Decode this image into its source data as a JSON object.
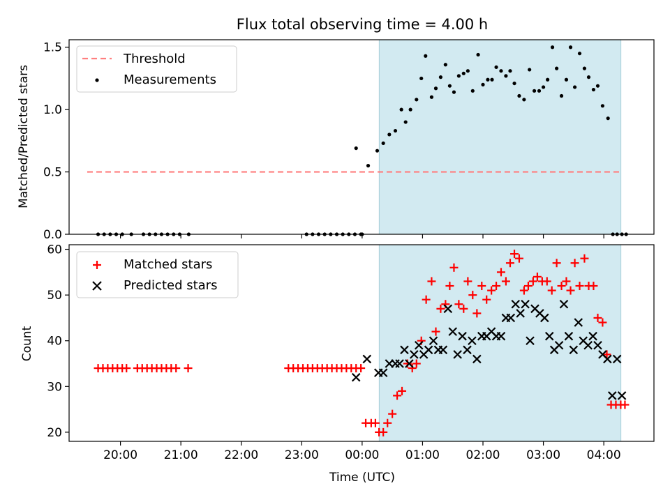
{
  "chart_data": [
    {
      "type": "scatter",
      "title": "Flux total observing time = 4.00 h",
      "xlabel": "",
      "ylabel": "Matched/Predicted stars",
      "ylim": [
        0,
        1.56
      ],
      "yticks": [
        "0.0",
        "0.5",
        "1.0",
        "1.5"
      ],
      "ytick_values": [
        0,
        0.5,
        1.0,
        1.5
      ],
      "shaded_region_hours": [
        0.283,
        4.283
      ],
      "threshold": {
        "name": "Threshold",
        "value": 0.5,
        "x_range": [
          -4.55,
          4.3
        ],
        "color": "#ff7f7f"
      },
      "legend": {
        "placement": "top-left",
        "entries": [
          "Threshold",
          "Measurements"
        ]
      },
      "series": [
        {
          "name": "Measurements",
          "color": "#000000",
          "marker": "dot",
          "x": [
            -4.37,
            -4.27,
            -4.17,
            -4.07,
            -3.97,
            -3.82,
            -3.62,
            -3.52,
            -3.42,
            -3.32,
            -3.22,
            -3.12,
            -3.02,
            -2.87,
            -0.92,
            -0.82,
            -0.72,
            -0.62,
            -0.52,
            -0.42,
            -0.32,
            -0.22,
            -0.12,
            -0.02,
            -0.1,
            0.0,
            0.1,
            0.25,
            0.35,
            0.45,
            0.55,
            0.65,
            0.72,
            0.8,
            0.9,
            0.98,
            1.05,
            1.15,
            1.22,
            1.3,
            1.38,
            1.45,
            1.52,
            1.6,
            1.68,
            1.75,
            1.83,
            1.92,
            2.0,
            2.08,
            2.15,
            2.22,
            2.3,
            2.38,
            2.45,
            2.52,
            2.6,
            2.68,
            2.77,
            2.85,
            2.93,
            3.0,
            3.07,
            3.15,
            3.22,
            3.3,
            3.38,
            3.45,
            3.52,
            3.6,
            3.68,
            3.75,
            3.83,
            3.9,
            3.98,
            4.07,
            4.15,
            4.22,
            4.3,
            4.37
          ],
          "y": [
            0,
            0,
            0,
            0,
            0,
            0,
            0,
            0,
            0,
            0,
            0,
            0,
            0,
            0,
            0,
            0,
            0,
            0,
            0,
            0,
            0,
            0,
            0,
            0,
            0.69,
            0,
            0.55,
            0.67,
            0.73,
            0.8,
            0.83,
            1.0,
            0.9,
            1.0,
            1.08,
            1.25,
            1.43,
            1.1,
            1.17,
            1.26,
            1.36,
            1.19,
            1.14,
            1.27,
            1.29,
            1.31,
            1.15,
            1.44,
            1.2,
            1.24,
            1.24,
            1.34,
            1.31,
            1.27,
            1.31,
            1.21,
            1.11,
            1.08,
            1.32,
            1.15,
            1.15,
            1.18,
            1.24,
            1.5,
            1.33,
            1.11,
            1.24,
            1.5,
            1.18,
            1.45,
            1.33,
            1.26,
            1.16,
            1.19,
            1.03,
            0.93,
            0,
            0,
            0,
            0
          ]
        }
      ]
    },
    {
      "type": "scatter",
      "title": "",
      "xlabel": "Time (UTC)",
      "ylabel": "Count",
      "ylim": [
        18,
        61
      ],
      "yticks": [
        "20",
        "30",
        "40",
        "50",
        "60"
      ],
      "ytick_values": [
        20,
        30,
        40,
        50,
        60
      ],
      "xlim_hours": [
        -4.85,
        4.83
      ],
      "xticks": [
        "20:00",
        "21:00",
        "22:00",
        "23:00",
        "00:00",
        "01:00",
        "02:00",
        "03:00",
        "04:00"
      ],
      "xtick_values": [
        -4,
        -3,
        -2,
        -1,
        0,
        1,
        2,
        3,
        4
      ],
      "shaded_region_hours": [
        0.283,
        4.283
      ],
      "legend": {
        "placement": "top-left",
        "entries": [
          "Matched stars",
          "Predicted stars"
        ]
      },
      "series": [
        {
          "name": "Matched stars",
          "color": "#ff0000",
          "marker": "plus",
          "x": [
            -4.37,
            -4.29,
            -4.21,
            -4.13,
            -4.05,
            -3.97,
            -3.9,
            -3.72,
            -3.64,
            -3.56,
            -3.48,
            -3.4,
            -3.32,
            -3.24,
            -3.16,
            -3.08,
            -2.88,
            -1.22,
            -1.14,
            -1.06,
            -0.98,
            -0.9,
            -0.82,
            -0.74,
            -0.66,
            -0.58,
            -0.5,
            -0.42,
            -0.34,
            -0.26,
            -0.18,
            -0.1,
            -0.02,
            0.06,
            0.15,
            0.22,
            0.28,
            0.35,
            0.42,
            0.5,
            0.58,
            0.66,
            0.75,
            0.83,
            0.9,
            0.98,
            1.06,
            1.15,
            1.22,
            1.3,
            1.38,
            1.45,
            1.52,
            1.6,
            1.68,
            1.75,
            1.83,
            1.9,
            1.98,
            2.06,
            2.14,
            2.22,
            2.3,
            2.38,
            2.45,
            2.52,
            2.6,
            2.68,
            2.75,
            2.83,
            2.9,
            2.98,
            3.06,
            3.14,
            3.22,
            3.3,
            3.38,
            3.45,
            3.52,
            3.6,
            3.68,
            3.75,
            3.83,
            3.9,
            3.98,
            4.05,
            4.12,
            4.2,
            4.28,
            4.35
          ],
          "y": [
            34,
            34,
            34,
            34,
            34,
            34,
            34,
            34,
            34,
            34,
            34,
            34,
            34,
            34,
            34,
            34,
            34,
            34,
            34,
            34,
            34,
            34,
            34,
            34,
            34,
            34,
            34,
            34,
            34,
            34,
            34,
            34,
            34,
            22,
            22,
            22,
            20,
            20,
            22,
            24,
            28,
            29,
            35,
            34,
            35,
            40,
            49,
            53,
            42,
            47,
            48,
            52,
            56,
            48,
            47,
            53,
            50,
            46,
            52,
            49,
            51,
            52,
            55,
            53,
            57,
            59,
            58,
            51,
            52,
            53,
            54,
            53,
            53,
            51,
            57,
            52,
            53,
            51,
            57,
            52,
            58,
            52,
            52,
            45,
            44,
            37,
            26,
            26,
            26,
            26
          ],
          "note": ""
        },
        {
          "name": "Predicted stars",
          "color": "#000000",
          "marker": "x",
          "x": [
            -0.1,
            0.08,
            0.27,
            0.35,
            0.45,
            0.55,
            0.62,
            0.7,
            0.78,
            0.86,
            0.94,
            1.02,
            1.1,
            1.18,
            1.26,
            1.34,
            1.42,
            1.5,
            1.58,
            1.66,
            1.74,
            1.82,
            1.9,
            1.98,
            2.06,
            2.14,
            2.22,
            2.3,
            2.38,
            2.46,
            2.54,
            2.62,
            2.7,
            2.78,
            2.86,
            2.94,
            3.02,
            3.1,
            3.18,
            3.26,
            3.34,
            3.42,
            3.5,
            3.58,
            3.66,
            3.74,
            3.82,
            3.9,
            3.98,
            4.06,
            4.14,
            4.22,
            4.3
          ],
          "y": [
            32,
            36,
            33,
            33,
            35,
            35,
            35,
            38,
            35,
            37,
            39,
            37,
            38,
            40,
            38,
            38,
            47,
            42,
            37,
            41,
            38,
            40,
            36,
            41,
            41,
            42,
            41,
            41,
            45,
            45,
            48,
            46,
            48,
            40,
            47,
            46,
            45,
            41,
            38,
            39,
            48,
            41,
            38,
            44,
            40,
            39,
            41,
            39,
            37,
            36,
            28,
            36,
            28
          ]
        }
      ]
    }
  ]
}
